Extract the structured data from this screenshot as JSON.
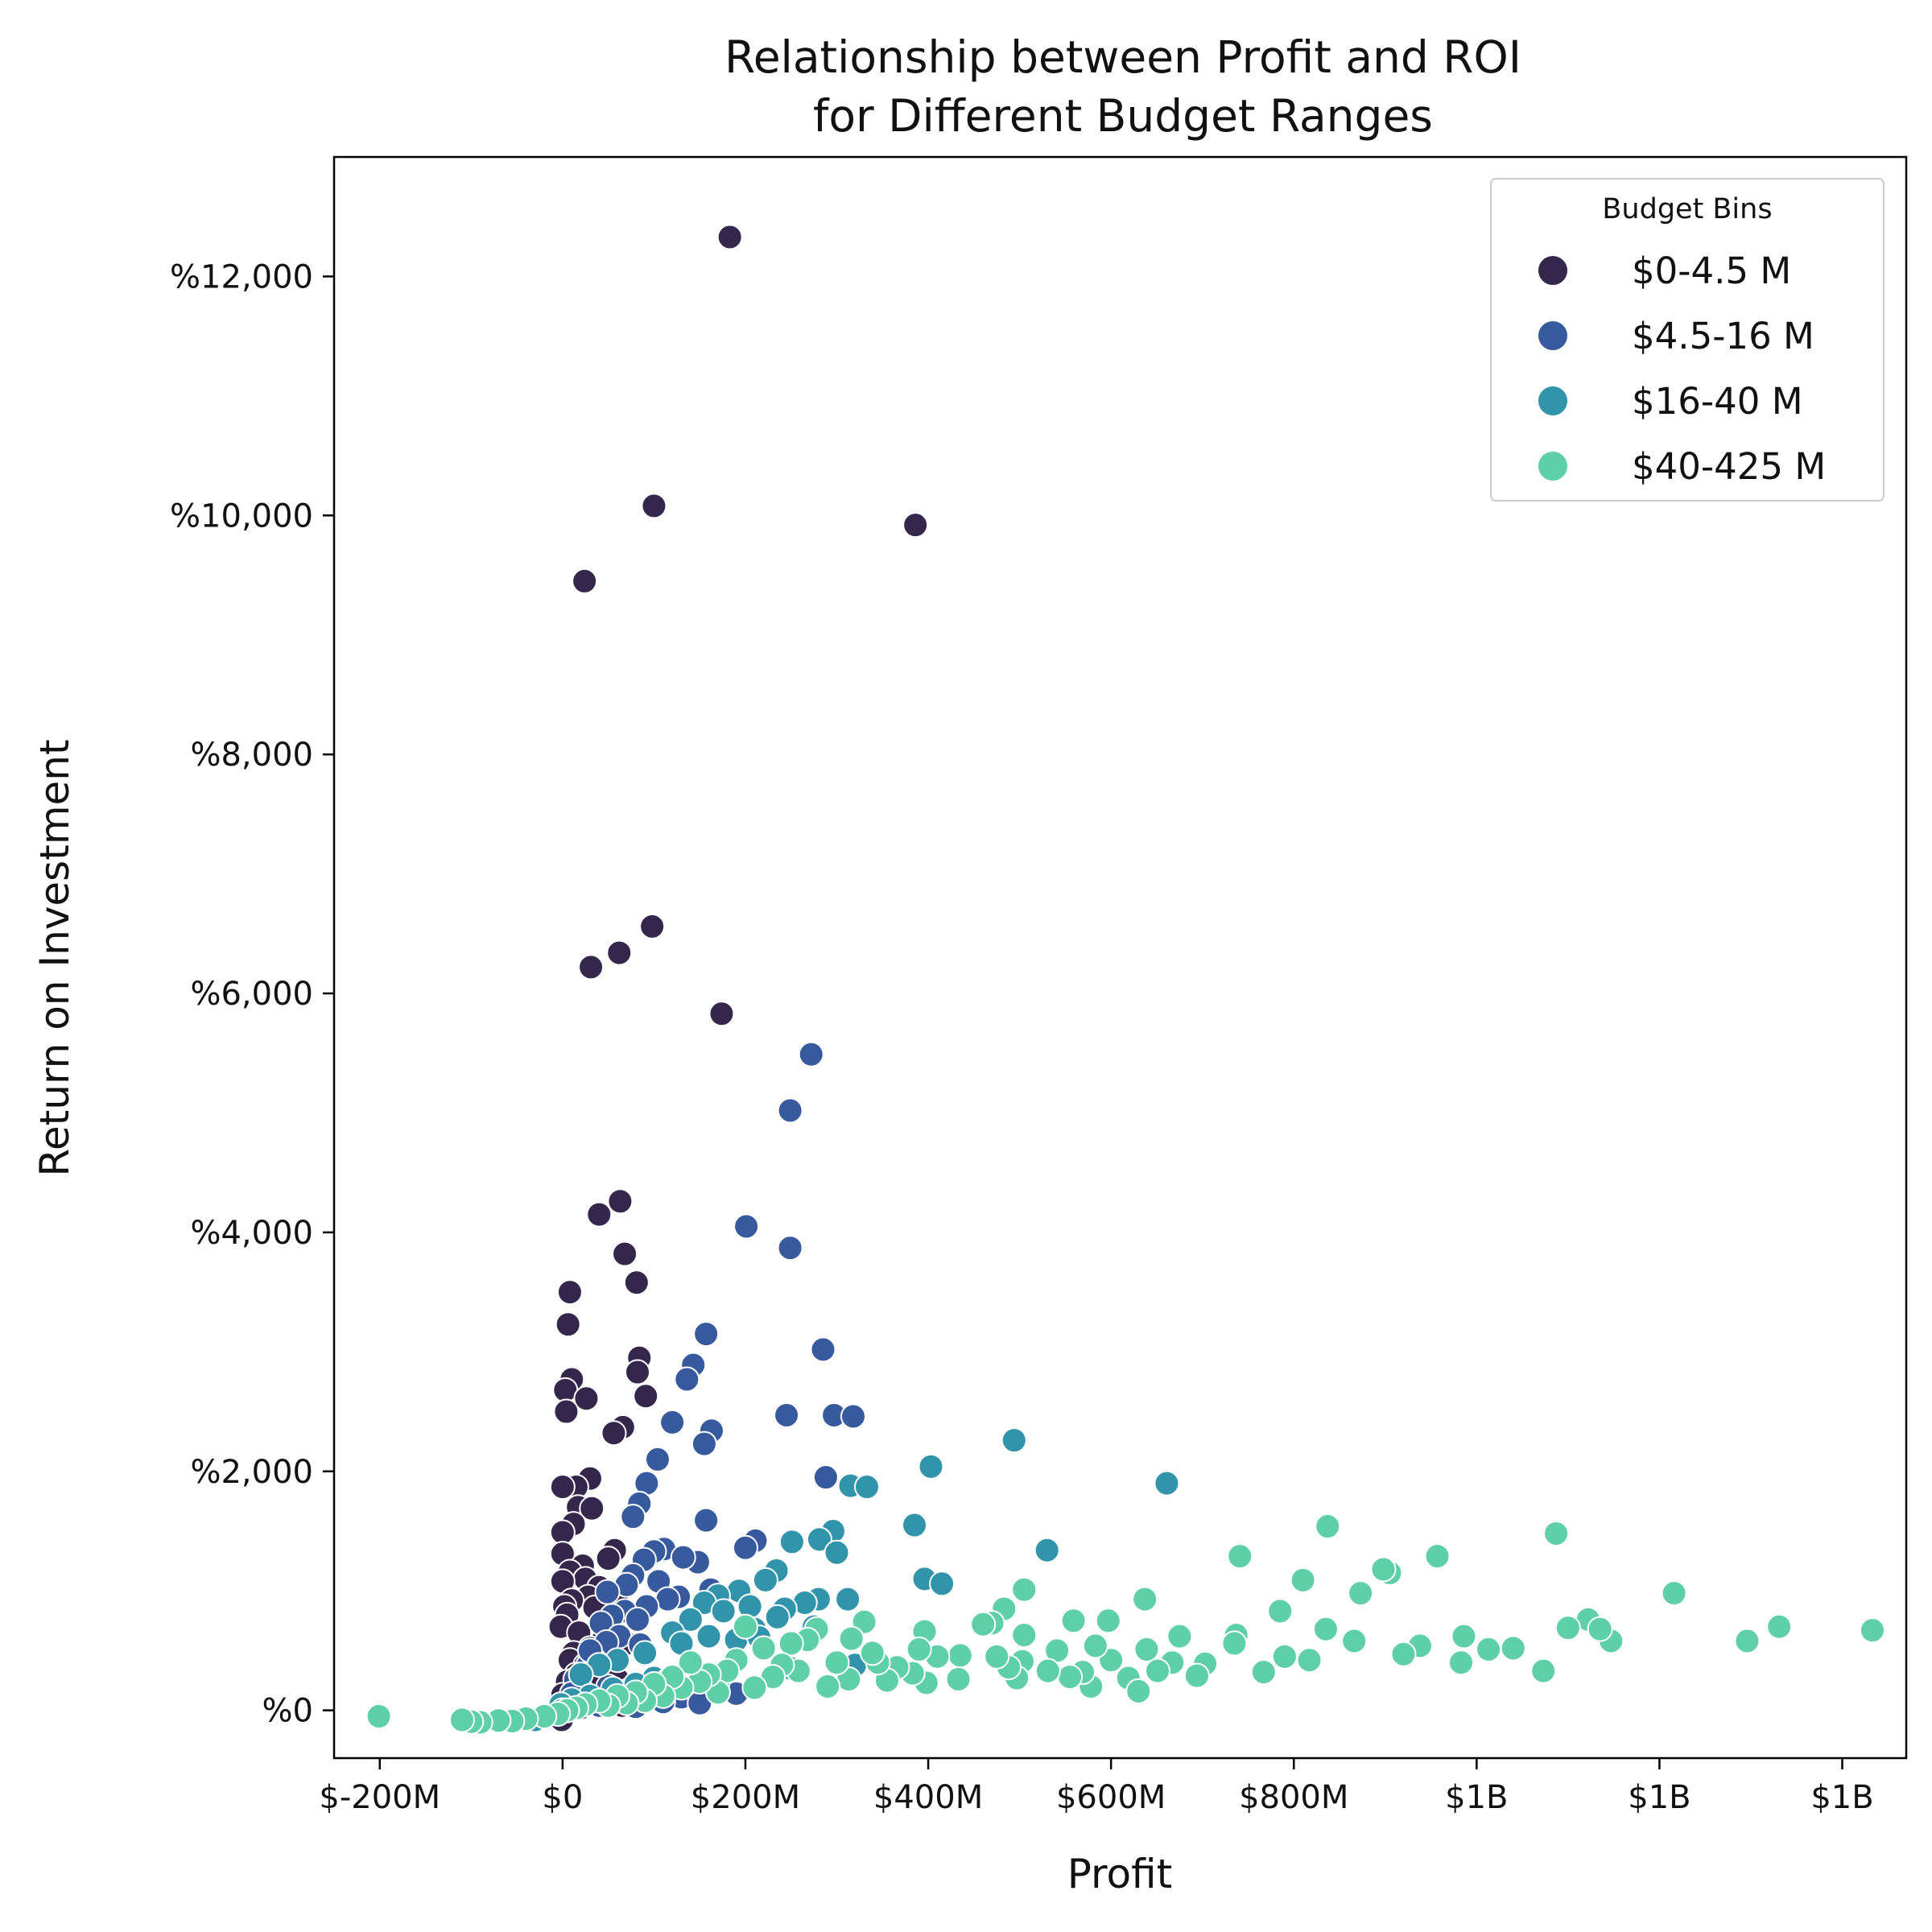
{
  "chart_data": {
    "type": "scatter",
    "title": [
      "Relationship between Profit and ROI",
      "for Different Budget Ranges"
    ],
    "xlabel": "Profit",
    "ylabel": "Return on Investment",
    "xlim": [
      -250000000,
      1470000000
    ],
    "ylim": [
      -400,
      13000
    ],
    "x_ticks": [
      {
        "value": -200000000,
        "label": "$-200M"
      },
      {
        "value": 0,
        "label": "$0"
      },
      {
        "value": 200000000,
        "label": "$200M"
      },
      {
        "value": 400000000,
        "label": "$400M"
      },
      {
        "value": 600000000,
        "label": "$600M"
      },
      {
        "value": 800000000,
        "label": "$800M"
      },
      {
        "value": 1000000000,
        "label": "$1B"
      },
      {
        "value": 1200000000,
        "label": "$1B"
      },
      {
        "value": 1400000000,
        "label": "$1B"
      }
    ],
    "y_ticks": [
      {
        "value": 0,
        "label": "%0"
      },
      {
        "value": 2000,
        "label": "%2,000"
      },
      {
        "value": 4000,
        "label": "%4,000"
      },
      {
        "value": 6000,
        "label": "%6,000"
      },
      {
        "value": 8000,
        "label": "%8,000"
      },
      {
        "value": 10000,
        "label": "%10,000"
      },
      {
        "value": 12000,
        "label": "%12,000"
      }
    ],
    "grid": false,
    "legend": {
      "title": "Budget Bins",
      "placement": "top-right"
    },
    "series": [
      {
        "name": "$0-4.5 M",
        "color": "#35264c",
        "points": [
          [
            183,
            12330
          ],
          [
            100,
            10080
          ],
          [
            24,
            9450
          ],
          [
            386,
            9920
          ],
          [
            98,
            6560
          ],
          [
            62,
            6340
          ],
          [
            31,
            6220
          ],
          [
            174,
            5830
          ],
          [
            63,
            4260
          ],
          [
            40,
            4150
          ],
          [
            68,
            3820
          ],
          [
            81,
            3580
          ],
          [
            8,
            3500
          ],
          [
            6,
            3230
          ],
          [
            84,
            2950
          ],
          [
            82,
            2830
          ],
          [
            91,
            2630
          ],
          [
            10,
            2770
          ],
          [
            3,
            2680
          ],
          [
            26,
            2610
          ],
          [
            4,
            2500
          ],
          [
            66,
            2370
          ],
          [
            56,
            2320
          ],
          [
            30,
            1940
          ],
          [
            15,
            1870
          ],
          [
            0,
            1870
          ],
          [
            17,
            1700
          ],
          [
            32,
            1690
          ],
          [
            12,
            1560
          ],
          [
            0,
            1490
          ],
          [
            57,
            1340
          ],
          [
            0,
            1310
          ],
          [
            50,
            1270
          ],
          [
            22,
            1210
          ],
          [
            8,
            1160
          ],
          [
            25,
            1100
          ],
          [
            0,
            1080
          ],
          [
            40,
            1030
          ],
          [
            60,
            980
          ],
          [
            28,
            950
          ],
          [
            10,
            920
          ],
          [
            2,
            870
          ],
          [
            35,
            860
          ],
          [
            5,
            800
          ],
          [
            -2,
            700
          ],
          [
            18,
            650
          ],
          [
            45,
            600
          ],
          [
            70,
            560
          ],
          [
            30,
            520
          ],
          [
            12,
            480
          ],
          [
            55,
            450
          ],
          [
            8,
            420
          ],
          [
            25,
            380
          ],
          [
            40,
            340
          ],
          [
            15,
            300
          ],
          [
            60,
            260
          ],
          [
            5,
            240
          ],
          [
            35,
            210
          ],
          [
            20,
            180
          ],
          [
            50,
            150
          ],
          [
            0,
            130
          ],
          [
            10,
            100
          ],
          [
            30,
            80
          ],
          [
            45,
            60
          ],
          [
            65,
            40
          ],
          [
            20,
            20
          ],
          [
            3,
            0
          ],
          [
            -1,
            -80
          ]
        ]
      },
      {
        "name": "$4.5-16 M",
        "color": "#375a9f",
        "points": [
          [
            272,
            5490
          ],
          [
            249,
            5020
          ],
          [
            201,
            4050
          ],
          [
            249,
            3870
          ],
          [
            157,
            3150
          ],
          [
            143,
            2890
          ],
          [
            285,
            3020
          ],
          [
            136,
            2770
          ],
          [
            297,
            2470
          ],
          [
            318,
            2460
          ],
          [
            245,
            2470
          ],
          [
            163,
            2340
          ],
          [
            120,
            2410
          ],
          [
            155,
            2230
          ],
          [
            104,
            2100
          ],
          [
            92,
            1900
          ],
          [
            288,
            1950
          ],
          [
            84,
            1730
          ],
          [
            77,
            1620
          ],
          [
            157,
            1590
          ],
          [
            211,
            1420
          ],
          [
            200,
            1360
          ],
          [
            148,
            1240
          ],
          [
            111,
            1350
          ],
          [
            100,
            1330
          ],
          [
            132,
            1280
          ],
          [
            89,
            1260
          ],
          [
            77,
            1130
          ],
          [
            105,
            1080
          ],
          [
            70,
            1050
          ],
          [
            162,
            1010
          ],
          [
            49,
            990
          ],
          [
            127,
            950
          ],
          [
            115,
            930
          ],
          [
            92,
            870
          ],
          [
            68,
            830
          ],
          [
            54,
            790
          ],
          [
            82,
            760
          ],
          [
            42,
            730
          ],
          [
            62,
            620
          ],
          [
            48,
            570
          ],
          [
            85,
            550
          ],
          [
            35,
            420
          ],
          [
            28,
            380
          ],
          [
            14,
            260
          ],
          [
            10,
            140
          ],
          [
            50,
            200
          ],
          [
            70,
            160
          ],
          [
            95,
            120
          ],
          [
            130,
            110
          ],
          [
            160,
            180
          ],
          [
            190,
            140
          ],
          [
            60,
            80
          ],
          [
            110,
            70
          ],
          [
            20,
            60
          ],
          [
            40,
            40
          ],
          [
            80,
            30
          ],
          [
            5,
            20
          ],
          [
            150,
            60
          ],
          [
            30,
            500
          ]
        ]
      },
      {
        "name": "$16-40 M",
        "color": "#3194ab",
        "points": [
          [
            494,
            2260
          ],
          [
            403,
            2040
          ],
          [
            661,
            1900
          ],
          [
            315,
            1880
          ],
          [
            333,
            1870
          ],
          [
            530,
            1340
          ],
          [
            385,
            1550
          ],
          [
            296,
            1500
          ],
          [
            281,
            1430
          ],
          [
            300,
            1320
          ],
          [
            251,
            1410
          ],
          [
            396,
            1100
          ],
          [
            415,
            1060
          ],
          [
            234,
            1170
          ],
          [
            222,
            1090
          ],
          [
            312,
            930
          ],
          [
            280,
            930
          ],
          [
            265,
            900
          ],
          [
            193,
            1000
          ],
          [
            170,
            960
          ],
          [
            155,
            900
          ],
          [
            243,
            850
          ],
          [
            205,
            870
          ],
          [
            176,
            830
          ],
          [
            235,
            780
          ],
          [
            140,
            760
          ],
          [
            275,
            700
          ],
          [
            210,
            680
          ],
          [
            120,
            650
          ],
          [
            160,
            620
          ],
          [
            190,
            590
          ],
          [
            215,
            610
          ],
          [
            130,
            560
          ],
          [
            90,
            480
          ],
          [
            60,
            420
          ],
          [
            40,
            380
          ],
          [
            20,
            300
          ],
          [
            100,
            270
          ],
          [
            115,
            250
          ],
          [
            150,
            300
          ],
          [
            80,
            220
          ],
          [
            55,
            180
          ],
          [
            30,
            120
          ],
          [
            10,
            90
          ],
          [
            -2,
            50
          ],
          [
            -30,
            -80
          ],
          [
            0,
            0
          ],
          [
            170,
            240
          ],
          [
            250,
            350
          ],
          [
            320,
            380
          ]
        ]
      },
      {
        "name": "$40-425 M",
        "color": "#5fcfa8",
        "points": [
          [
            1433,
            670
          ],
          [
            1331,
            700
          ],
          [
            1296,
            580
          ],
          [
            1216,
            980
          ],
          [
            1147,
            580
          ],
          [
            1122,
            760
          ],
          [
            1135,
            680
          ],
          [
            1100,
            690
          ],
          [
            1087,
            1480
          ],
          [
            1073,
            330
          ],
          [
            1040,
            520
          ],
          [
            1013,
            510
          ],
          [
            986,
            620
          ],
          [
            983,
            400
          ],
          [
            957,
            1290
          ],
          [
            938,
            540
          ],
          [
            920,
            470
          ],
          [
            905,
            1150
          ],
          [
            898,
            1180
          ],
          [
            873,
            980
          ],
          [
            866,
            580
          ],
          [
            837,
            1540
          ],
          [
            835,
            680
          ],
          [
            810,
            1090
          ],
          [
            817,
            420
          ],
          [
            790,
            450
          ],
          [
            785,
            830
          ],
          [
            767,
            320
          ],
          [
            741,
            1290
          ],
          [
            737,
            630
          ],
          [
            735,
            560
          ],
          [
            703,
            390
          ],
          [
            694,
            290
          ],
          [
            675,
            620
          ],
          [
            667,
            400
          ],
          [
            651,
            330
          ],
          [
            637,
            930
          ],
          [
            639,
            510
          ],
          [
            619,
            270
          ],
          [
            630,
            160
          ],
          [
            597,
            750
          ],
          [
            600,
            420
          ],
          [
            583,
            540
          ],
          [
            578,
            200
          ],
          [
            569,
            320
          ],
          [
            559,
            750
          ],
          [
            555,
            280
          ],
          [
            541,
            500
          ],
          [
            531,
            330
          ],
          [
            505,
            1010
          ],
          [
            505,
            630
          ],
          [
            503,
            410
          ],
          [
            497,
            270
          ],
          [
            483,
            850
          ],
          [
            488,
            360
          ],
          [
            475,
            450
          ],
          [
            470,
            730
          ],
          [
            460,
            720
          ],
          [
            435,
            460
          ],
          [
            433,
            260
          ],
          [
            410,
            450
          ],
          [
            396,
            660
          ],
          [
            398,
            230
          ],
          [
            390,
            510
          ],
          [
            383,
            310
          ],
          [
            366,
            360
          ],
          [
            355,
            250
          ],
          [
            345,
            400
          ],
          [
            339,
            480
          ],
          [
            330,
            740
          ],
          [
            316,
            600
          ],
          [
            313,
            260
          ],
          [
            300,
            400
          ],
          [
            290,
            200
          ],
          [
            278,
            680
          ],
          [
            268,
            590
          ],
          [
            258,
            330
          ],
          [
            250,
            560
          ],
          [
            240,
            380
          ],
          [
            230,
            280
          ],
          [
            220,
            520
          ],
          [
            210,
            190
          ],
          [
            200,
            700
          ],
          [
            190,
            420
          ],
          [
            180,
            330
          ],
          [
            170,
            150
          ],
          [
            160,
            300
          ],
          [
            150,
            240
          ],
          [
            140,
            400
          ],
          [
            130,
            190
          ],
          [
            120,
            280
          ],
          [
            110,
            120
          ],
          [
            100,
            220
          ],
          [
            90,
            80
          ],
          [
            80,
            150
          ],
          [
            70,
            60
          ],
          [
            60,
            120
          ],
          [
            50,
            40
          ],
          [
            40,
            80
          ],
          [
            25,
            50
          ],
          [
            15,
            20
          ],
          [
            5,
            0
          ],
          [
            -5,
            -30
          ],
          [
            -20,
            -50
          ],
          [
            -40,
            -70
          ],
          [
            -55,
            -90
          ],
          [
            -70,
            -85
          ],
          [
            -90,
            -100
          ],
          [
            -100,
            -95
          ],
          [
            -110,
            -80
          ],
          [
            -201,
            -50
          ]
        ]
      }
    ]
  }
}
